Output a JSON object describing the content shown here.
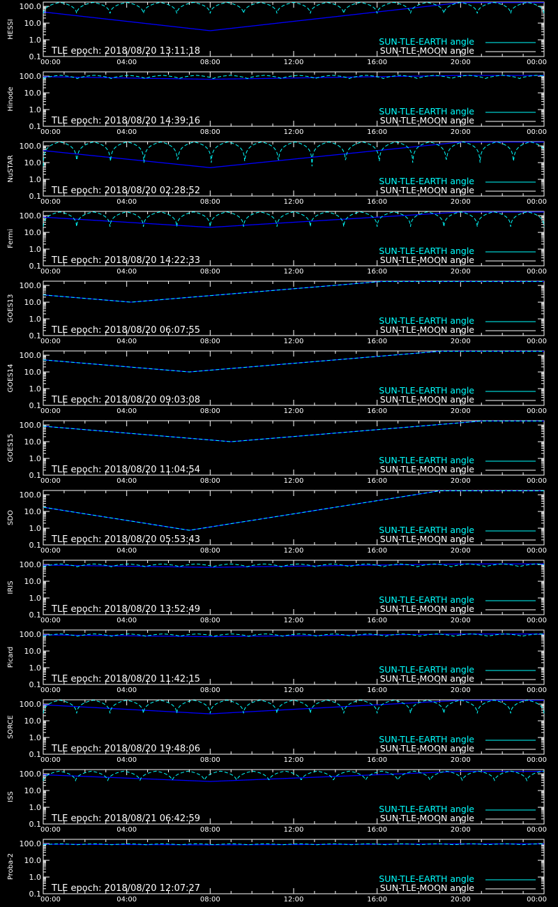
{
  "chart_data": {
    "type": "line",
    "x_tick_labels": [
      "00:00",
      "04:00",
      "08:00",
      "12:00",
      "16:00",
      "20:00",
      "00:00"
    ],
    "y_tick_labels": [
      "100.0",
      "10.0",
      "1.0",
      "0.1"
    ],
    "ylim": [
      0.1,
      180
    ],
    "y_scale": "log",
    "grid": false,
    "legend_placement": "bottom-right",
    "legend": {
      "earth_label": "SUN-TLE-EARTH angle",
      "moon_label": "SUN-TLE-MOON angle"
    },
    "colors": {
      "background": "#000000",
      "axes": "#ffffff",
      "earth_series": "#00ffff",
      "moon_series": "#0000ff",
      "moon_legend": "#ffffff"
    },
    "panels": [
      {
        "name": "HESSI",
        "epoch_label": "TLE epoch: 2018/08/20 13:11:18",
        "earth_min": 38,
        "earth_max": 172,
        "orbit_period_hours": 1.6,
        "earth_shape": "dip",
        "moon_min": 3.5,
        "moon_max": 168,
        "moon_min_hour": 8
      },
      {
        "name": "Hinode",
        "epoch_label": "TLE epoch: 2018/08/20 14:39:16",
        "earth_min": 70,
        "earth_max": 112,
        "orbit_period_hours": 1.63,
        "earth_shape": "dip",
        "moon_min": 65,
        "moon_max": 110,
        "moon_min_hour": 8
      },
      {
        "name": "NuSTAR",
        "epoch_label": "TLE epoch: 2018/08/20 02:28:52",
        "earth_min": 6,
        "earth_max": 172,
        "orbit_period_hours": 1.61,
        "earth_shape": "dip",
        "moon_min": 5,
        "moon_max": 170,
        "moon_min_hour": 8
      },
      {
        "name": "Fermi",
        "epoch_label": "TLE epoch: 2018/08/20 14:22:33",
        "earth_min": 22,
        "earth_max": 168,
        "orbit_period_hours": 1.6,
        "earth_shape": "dip",
        "moon_min": 20,
        "moon_max": 165,
        "moon_min_hour": 8
      },
      {
        "name": "GOES13",
        "epoch_label": "TLE epoch: 2018/08/20 06:07:55",
        "earth_min": 10,
        "earth_max": 172,
        "earth_min_hour": 4.2,
        "earth_shape": "geo",
        "moon_min": 10,
        "moon_max": 172,
        "moon_min_hour": 4.2
      },
      {
        "name": "GOES14",
        "epoch_label": "TLE epoch: 2018/08/20 09:03:08",
        "earth_min": 10,
        "earth_max": 172,
        "earth_min_hour": 7,
        "earth_shape": "geo",
        "moon_min": 10,
        "moon_max": 172,
        "moon_min_hour": 7
      },
      {
        "name": "GOES15",
        "epoch_label": "TLE epoch: 2018/08/20 11:04:54",
        "earth_min": 10,
        "earth_max": 172,
        "earth_min_hour": 9,
        "earth_shape": "geo",
        "moon_min": 10,
        "moon_max": 172,
        "moon_min_hour": 9
      },
      {
        "name": "SDO",
        "epoch_label": "TLE epoch: 2018/08/20 05:53:43",
        "earth_min": 0.75,
        "earth_max": 172,
        "earth_min_hour": 7,
        "earth_shape": "geo",
        "moon_min": 0.75,
        "moon_max": 172,
        "moon_min_hour": 7
      },
      {
        "name": "IRIS",
        "epoch_label": "TLE epoch: 2018/08/20 13:52:49",
        "earth_min": 72,
        "earth_max": 108,
        "orbit_period_hours": 1.63,
        "earth_shape": "dip",
        "moon_min": 68,
        "moon_max": 108,
        "moon_min_hour": 8
      },
      {
        "name": "Picard",
        "epoch_label": "TLE epoch: 2018/08/20 11:42:15",
        "earth_min": 75,
        "earth_max": 105,
        "orbit_period_hours": 1.64,
        "earth_shape": "dip",
        "moon_min": 72,
        "moon_max": 104,
        "moon_min_hour": 8
      },
      {
        "name": "SORCE",
        "epoch_label": "TLE epoch: 2018/08/20 19:48:06",
        "earth_min": 28,
        "earth_max": 170,
        "orbit_period_hours": 1.6,
        "earth_shape": "dip",
        "moon_min": 26,
        "moon_max": 168,
        "moon_min_hour": 8
      },
      {
        "name": "ISS",
        "epoch_label": "TLE epoch: 2018/08/21 06:42:59",
        "earth_min": 38,
        "earth_max": 145,
        "orbit_period_hours": 1.545,
        "earth_shape": "dip",
        "moon_min": 35,
        "moon_max": 140,
        "moon_min_hour": 8
      },
      {
        "name": "Proba-2",
        "epoch_label": "TLE epoch: 2018/08/20 12:07:27",
        "earth_min": 85,
        "earth_max": 97,
        "orbit_period_hours": 1.64,
        "earth_shape": "dip",
        "moon_min": 84,
        "moon_max": 96,
        "moon_min_hour": 8
      }
    ]
  }
}
